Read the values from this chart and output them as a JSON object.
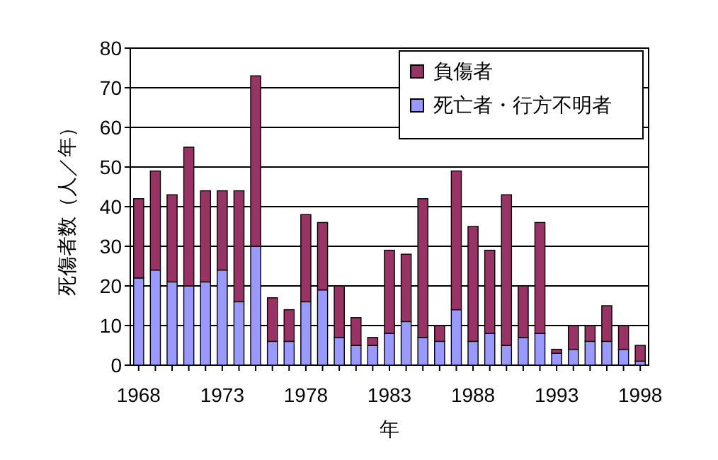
{
  "chart_data": {
    "type": "bar",
    "stacked": true,
    "xlabel": "年",
    "ylabel": "死傷者数（人／年）",
    "categories": [
      "1968",
      null,
      null,
      null,
      null,
      "1973",
      null,
      null,
      null,
      null,
      "1978",
      null,
      null,
      null,
      null,
      "1983",
      null,
      null,
      null,
      null,
      "1988",
      null,
      null,
      null,
      null,
      "1993",
      null,
      null,
      null,
      null,
      "1998"
    ],
    "series": [
      {
        "name": "死亡者・行方不明者",
        "color": "#9999ff",
        "values": [
          22,
          24,
          21,
          20,
          21,
          24,
          16,
          30,
          6,
          6,
          16,
          19,
          7,
          5,
          5,
          8,
          11,
          7,
          6,
          14,
          6,
          8,
          5,
          7,
          8,
          3,
          4,
          6,
          6,
          4,
          1
        ]
      },
      {
        "name": "負傷者",
        "color": "#993366",
        "values": [
          20,
          25,
          22,
          35,
          23,
          20,
          28,
          43,
          11,
          8,
          22,
          17,
          13,
          7,
          2,
          21,
          17,
          35,
          4,
          35,
          29,
          21,
          38,
          13,
          28,
          1,
          6,
          4,
          9,
          6,
          4
        ]
      }
    ],
    "ylim": [
      0,
      80
    ],
    "yticks": [
      0,
      10,
      20,
      30,
      40,
      50,
      60,
      70,
      80
    ],
    "grid": "y",
    "legend": "top right"
  }
}
